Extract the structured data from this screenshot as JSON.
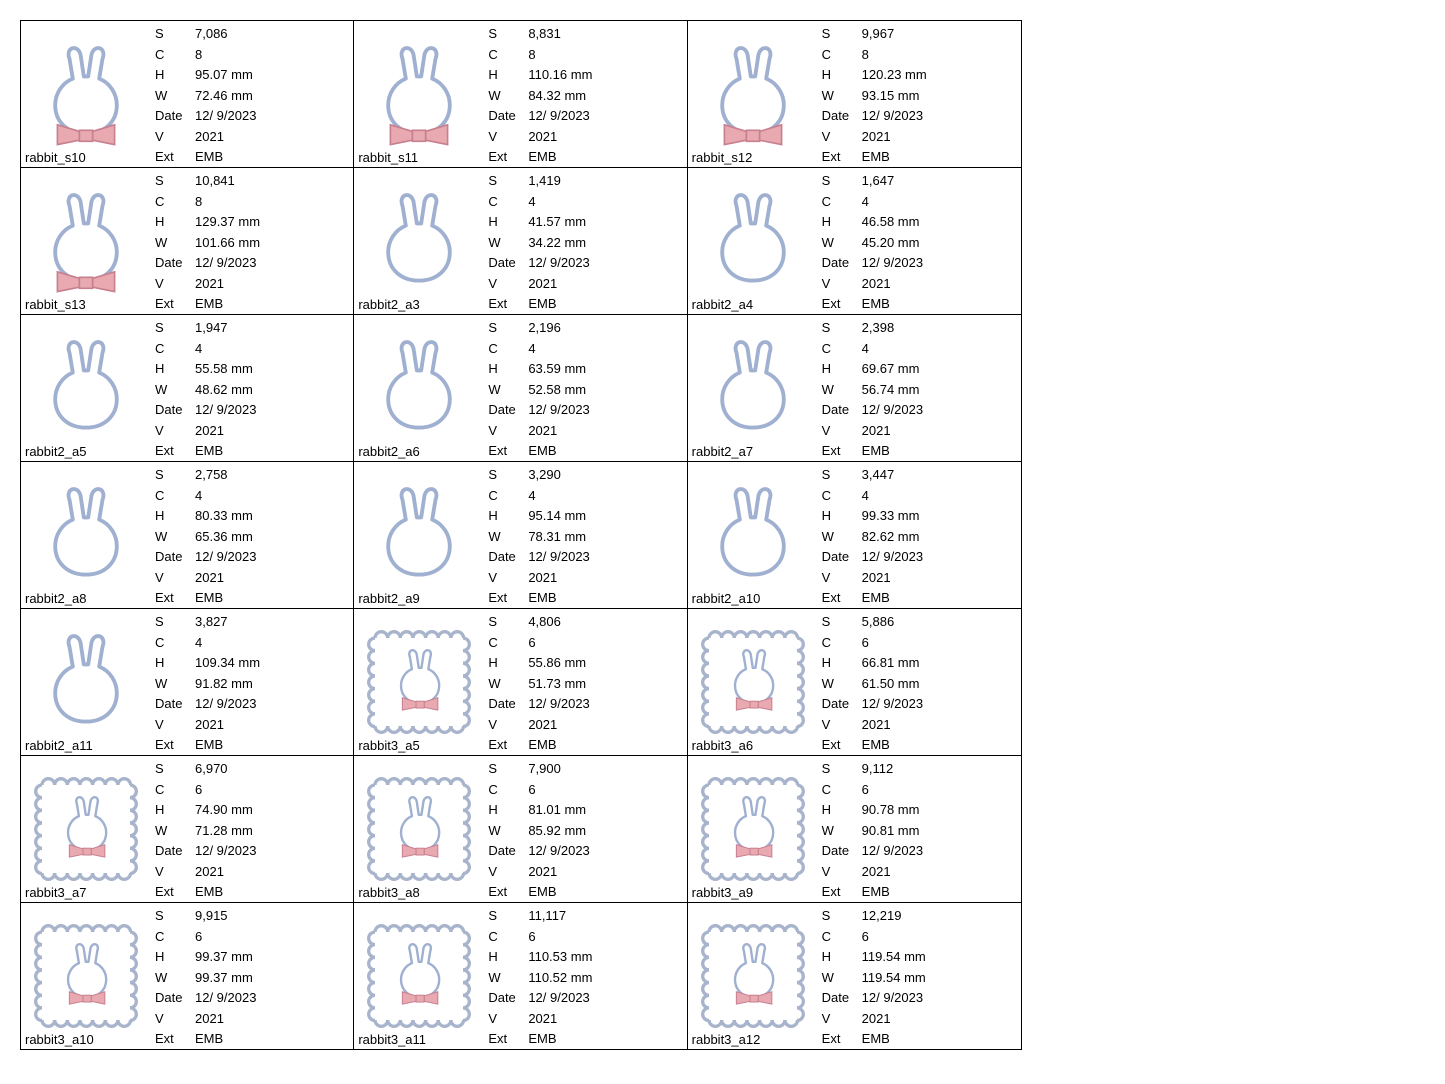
{
  "labels": {
    "S": "S",
    "C": "C",
    "H": "H",
    "W": "W",
    "Date": "Date",
    "V": "V",
    "Ext": "Ext"
  },
  "colors": {
    "outline": "#9fb0d0",
    "bow_fill": "#e8aab0",
    "bow_line": "#c88090",
    "frame": "#a8b4cc"
  },
  "common": {
    "Date": "12/ 9/2023",
    "V": "2021",
    "Ext": "EMB"
  },
  "items": [
    {
      "name": "rabbit_s10",
      "type": "bow",
      "S": "7,086",
      "C": "8",
      "H": "95.07 mm",
      "W": "72.46 mm"
    },
    {
      "name": "rabbit_s11",
      "type": "bow",
      "S": "8,831",
      "C": "8",
      "H": "110.16 mm",
      "W": "84.32 mm"
    },
    {
      "name": "rabbit_s12",
      "type": "bow",
      "S": "9,967",
      "C": "8",
      "H": "120.23 mm",
      "W": "93.15 mm"
    },
    {
      "name": "rabbit_s13",
      "type": "bow",
      "S": "10,841",
      "C": "8",
      "H": "129.37 mm",
      "W": "101.66 mm"
    },
    {
      "name": "rabbit2_a3",
      "type": "plain",
      "S": "1,419",
      "C": "4",
      "H": "41.57 mm",
      "W": "34.22 mm"
    },
    {
      "name": "rabbit2_a4",
      "type": "plain",
      "S": "1,647",
      "C": "4",
      "H": "46.58 mm",
      "W": "45.20 mm"
    },
    {
      "name": "rabbit2_a5",
      "type": "plain",
      "S": "1,947",
      "C": "4",
      "H": "55.58 mm",
      "W": "48.62 mm"
    },
    {
      "name": "rabbit2_a6",
      "type": "plain",
      "S": "2,196",
      "C": "4",
      "H": "63.59 mm",
      "W": "52.58 mm"
    },
    {
      "name": "rabbit2_a7",
      "type": "plain",
      "S": "2,398",
      "C": "4",
      "H": "69.67 mm",
      "W": "56.74 mm"
    },
    {
      "name": "rabbit2_a8",
      "type": "plain",
      "S": "2,758",
      "C": "4",
      "H": "80.33 mm",
      "W": "65.36 mm"
    },
    {
      "name": "rabbit2_a9",
      "type": "plain",
      "S": "3,290",
      "C": "4",
      "H": "95.14 mm",
      "W": "78.31 mm"
    },
    {
      "name": "rabbit2_a10",
      "type": "plain",
      "S": "3,447",
      "C": "4",
      "H": "99.33 mm",
      "W": "82.62 mm"
    },
    {
      "name": "rabbit2_a11",
      "type": "plain",
      "S": "3,827",
      "C": "4",
      "H": "109.34 mm",
      "W": "91.82 mm"
    },
    {
      "name": "rabbit3_a5",
      "type": "frame",
      "S": "4,806",
      "C": "6",
      "H": "55.86 mm",
      "W": "51.73 mm"
    },
    {
      "name": "rabbit3_a6",
      "type": "frame",
      "S": "5,886",
      "C": "6",
      "H": "66.81 mm",
      "W": "61.50 mm"
    },
    {
      "name": "rabbit3_a7",
      "type": "frame",
      "S": "6,970",
      "C": "6",
      "H": "74.90 mm",
      "W": "71.28 mm"
    },
    {
      "name": "rabbit3_a8",
      "type": "frame",
      "S": "7,900",
      "C": "6",
      "H": "81.01 mm",
      "W": "85.92 mm"
    },
    {
      "name": "rabbit3_a9",
      "type": "frame",
      "S": "9,112",
      "C": "6",
      "H": "90.78 mm",
      "W": "90.81 mm"
    },
    {
      "name": "rabbit3_a10",
      "type": "frame",
      "S": "9,915",
      "C": "6",
      "H": "99.37 mm",
      "W": "99.37 mm"
    },
    {
      "name": "rabbit3_a11",
      "type": "frame",
      "S": "11,117",
      "C": "6",
      "H": "110.53 mm",
      "W": "110.52 mm"
    },
    {
      "name": "rabbit3_a12",
      "type": "frame",
      "S": "12,219",
      "C": "6",
      "H": "119.54 mm",
      "W": "119.54 mm"
    }
  ]
}
